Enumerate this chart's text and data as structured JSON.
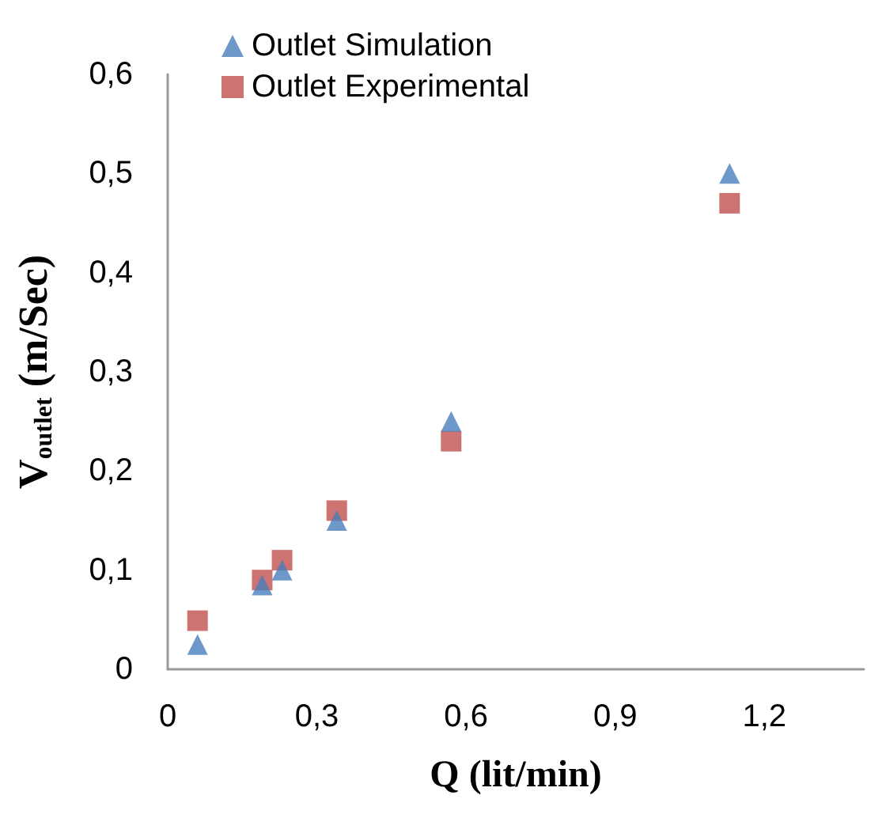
{
  "chart_data": {
    "type": "scatter",
    "xlabel": "Q (lit/min)",
    "ylabel": "V$_{outlet}$ (m/Sec)",
    "x": [
      0.06,
      0.19,
      0.23,
      0.34,
      0.57,
      1.13
    ],
    "series": [
      {
        "name": "Outlet Simulation",
        "color": "#4a7ebb",
        "marker": "triangle",
        "values": [
          0.025,
          0.085,
          0.1,
          0.15,
          0.25,
          0.5
        ]
      },
      {
        "name": "Outlet Experimental",
        "color": "#c0504d",
        "marker": "square",
        "values": [
          0.049,
          0.09,
          0.11,
          0.16,
          0.23,
          0.47
        ]
      }
    ],
    "xlim": [
      0,
      1.4
    ],
    "xticks": [
      {
        "value": 0,
        "label": "0"
      },
      {
        "value": 0.3,
        "label": "0,3"
      },
      {
        "value": 0.6,
        "label": "0,6"
      },
      {
        "value": 0.9,
        "label": "0,9"
      },
      {
        "value": 1.2,
        "label": "1,2"
      }
    ],
    "ylim": [
      0,
      0.6
    ],
    "yticks": [
      {
        "value": 0,
        "label": "0"
      },
      {
        "value": 0.1,
        "label": "0,1"
      },
      {
        "value": 0.2,
        "label": "0,2"
      },
      {
        "value": 0.3,
        "label": "0,3"
      },
      {
        "value": 0.4,
        "label": "0,4"
      },
      {
        "value": 0.5,
        "label": "0,5"
      },
      {
        "value": 0.6,
        "label": "0,6"
      }
    ],
    "grid": false,
    "legend": "top left"
  }
}
